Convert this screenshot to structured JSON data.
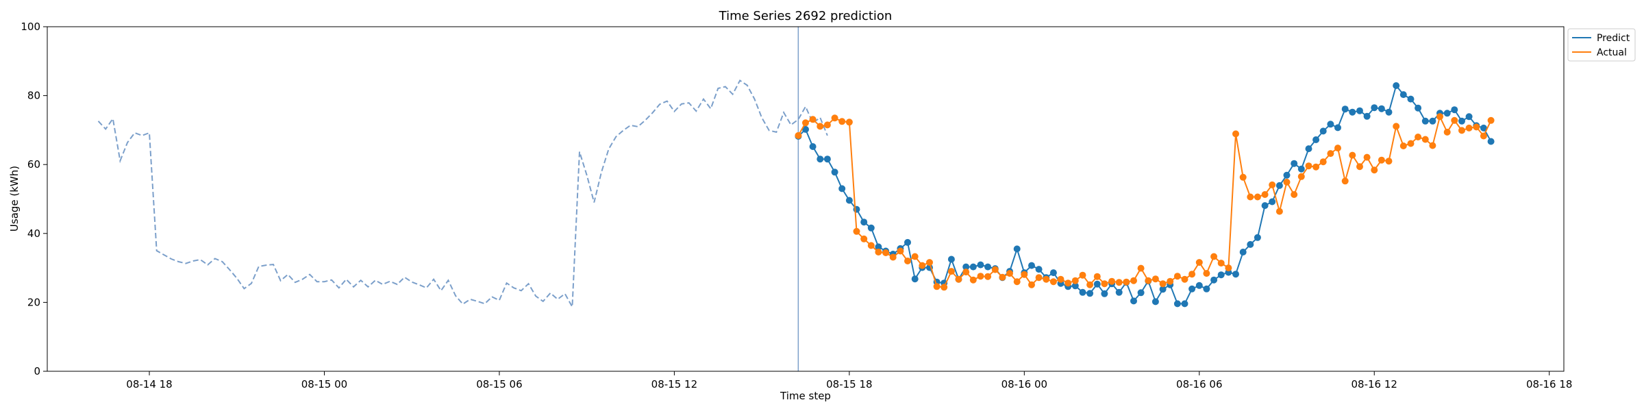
{
  "chart_data": {
    "type": "line",
    "title": "Time Series 2692 prediction",
    "xlabel": "Time step",
    "ylabel": "Usage (kWh)",
    "ylim": [
      0,
      100
    ],
    "yticks": [
      0,
      20,
      40,
      60,
      80,
      100
    ],
    "xlim": [
      "08-14 14:30",
      "08-16 18:30"
    ],
    "xticks": [
      "08-14 18:00",
      "08-15 00:00",
      "08-15 06:00",
      "08-15 12:00",
      "08-15 18:00",
      "08-16 00:00",
      "08-16 06:00",
      "08-16 12:00",
      "08-16 18:00"
    ],
    "xtick_labels": [
      "08-14 18",
      "08-15 00",
      "08-15 06",
      "08-15 12",
      "08-15 18",
      "08-16 00",
      "08-16 06",
      "08-16 12",
      "08-16 18"
    ],
    "history": {
      "style": "dashed",
      "color": "#7b9fca",
      "start": "08-14 16:15",
      "step_minutes": 15,
      "values": [
        72.6,
        70.3,
        73.3,
        61.1,
        66.4,
        69.2,
        68.4,
        69.2,
        35.0,
        33.8,
        32.6,
        31.8,
        31.3,
        32.0,
        32.4,
        30.9,
        32.7,
        31.8,
        29.5,
        27.0,
        24.0,
        25.5,
        30.4,
        30.8,
        31.0,
        26.3,
        28.1,
        25.8,
        26.7,
        28.1,
        26.0,
        26.0,
        26.5,
        24.2,
        26.7,
        24.5,
        26.4,
        24.5,
        26.4,
        25.2,
        26.1,
        25.2,
        27.3,
        25.9,
        25.1,
        24.2,
        26.7,
        23.4,
        26.4,
        21.9,
        19.5,
        20.9,
        20.3,
        19.6,
        21.6,
        20.6,
        25.6,
        24.2,
        23.4,
        25.4,
        21.8,
        20.3,
        22.7,
        20.9,
        22.5,
        18.7,
        63.7,
        56.9,
        49.0,
        57.8,
        64.5,
        68.1,
        69.9,
        71.4,
        71.0,
        72.8,
        75.0,
        77.5,
        78.4,
        75.4,
        77.6,
        77.9,
        75.5,
        79.0,
        76.2,
        82.1,
        82.6,
        80.4,
        84.4,
        83.0,
        79.0,
        73.6,
        69.9,
        69.4,
        75.1,
        71.5,
        73.1,
        76.8,
        72.1,
        73.6,
        68.4
      ]
    },
    "forecast_start": "08-15 16:15",
    "split_marker": "08-15 16:15",
    "series": [
      {
        "name": "Predict",
        "color": "#1f77b4",
        "start": "08-15 16:15",
        "step_minutes": 15,
        "values": [
          68.2,
          70.2,
          65.2,
          61.6,
          61.6,
          57.8,
          53.0,
          49.6,
          47.0,
          43.3,
          41.6,
          36.1,
          34.9,
          34.0,
          35.6,
          37.4,
          26.8,
          30.1,
          30.1,
          25.9,
          25.6,
          32.5,
          26.7,
          30.3,
          30.3,
          30.9,
          30.3,
          29.8,
          27.2,
          29.0,
          35.5,
          28.6,
          30.7,
          29.6,
          27.2,
          28.6,
          25.5,
          24.6,
          24.8,
          22.9,
          22.6,
          25.3,
          22.5,
          25.4,
          22.9,
          25.8,
          20.4,
          22.8,
          26.2,
          20.2,
          23.8,
          25.1,
          19.6,
          19.6,
          23.9,
          24.9,
          23.9,
          26.5,
          28.0,
          28.7,
          28.2,
          34.6,
          36.8,
          38.8,
          48.1,
          49.2,
          53.9,
          56.9,
          60.3,
          58.7,
          64.6,
          67.2,
          69.7,
          71.7,
          70.7,
          76.1,
          75.2,
          75.6,
          74.0,
          76.5,
          76.2,
          75.2,
          82.9,
          80.3,
          79.0,
          76.4,
          72.6,
          72.6,
          74.9,
          74.9,
          75.9,
          72.6,
          73.9,
          71.3,
          70.6,
          66.7
        ]
      },
      {
        "name": "Actual",
        "color": "#ff7f0e",
        "start": "08-15 16:15",
        "step_minutes": 15,
        "values": [
          68.4,
          72.1,
          73.1,
          71.1,
          71.5,
          73.5,
          72.5,
          72.3,
          40.6,
          38.4,
          36.5,
          34.6,
          34.4,
          33.1,
          34.9,
          32.0,
          33.3,
          30.7,
          31.6,
          24.6,
          24.4,
          29.0,
          26.7,
          28.8,
          26.5,
          27.6,
          27.5,
          29.5,
          27.3,
          28.4,
          26.0,
          28.1,
          25.1,
          27.2,
          26.7,
          26.0,
          26.7,
          25.6,
          26.3,
          27.9,
          25.1,
          27.5,
          25.4,
          26.1,
          25.8,
          25.9,
          26.3,
          29.9,
          26.3,
          26.8,
          25.4,
          26.1,
          27.6,
          26.7,
          28.2,
          31.6,
          28.4,
          33.3,
          31.4,
          30.0,
          68.9,
          56.3,
          50.6,
          50.6,
          51.3,
          54.1,
          46.4,
          54.9,
          51.3,
          56.5,
          59.6,
          59.3,
          60.8,
          63.2,
          64.8,
          55.2,
          62.7,
          59.4,
          62.1,
          58.4,
          61.3,
          61.0,
          71.1,
          65.4,
          66.1,
          68.0,
          67.3,
          65.5,
          73.9,
          69.4,
          72.8,
          69.9,
          70.6,
          70.9,
          68.3,
          72.8
        ]
      }
    ],
    "legend": {
      "placement": "top-right",
      "entries": [
        "Predict",
        "Actual"
      ]
    },
    "grid": false
  }
}
